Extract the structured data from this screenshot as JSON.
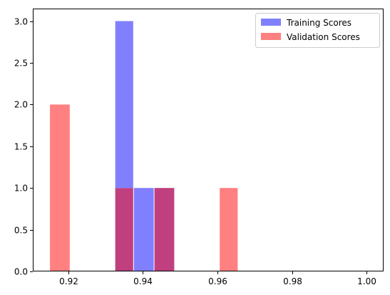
{
  "chart_data": {
    "type": "bar",
    "title": "",
    "xlabel": "",
    "ylabel": "",
    "xlim": [
      0.9105,
      1.0045
    ],
    "ylim": [
      0,
      3.15
    ],
    "x_ticks": [
      {
        "value": 0.92,
        "label": "0.92"
      },
      {
        "value": 0.94,
        "label": "0.94"
      },
      {
        "value": 0.96,
        "label": "0.96"
      },
      {
        "value": 0.98,
        "label": "0.98"
      },
      {
        "value": 1.0,
        "label": "1.00"
      }
    ],
    "y_ticks": [
      {
        "value": 0.0,
        "label": "0.0"
      },
      {
        "value": 0.5,
        "label": "0.5"
      },
      {
        "value": 1.0,
        "label": "1.0"
      },
      {
        "value": 1.5,
        "label": "1.5"
      },
      {
        "value": 2.0,
        "label": "2.0"
      },
      {
        "value": 2.5,
        "label": "2.5"
      },
      {
        "value": 3.0,
        "label": "3.0"
      }
    ],
    "series": [
      {
        "name": "Training Scores",
        "color": "#8080ff",
        "bins": [
          {
            "x0": 0.9325,
            "x1": 0.9375,
            "count": 3
          },
          {
            "x0": 0.9375,
            "x1": 0.943,
            "count": 1
          },
          {
            "x0": 0.943,
            "x1": 0.9485,
            "count": 1
          }
        ]
      },
      {
        "name": "Validation Scores",
        "color": "#ff8080",
        "bins": [
          {
            "x0": 0.915,
            "x1": 0.9205,
            "count": 2
          },
          {
            "x0": 0.9325,
            "x1": 0.9375,
            "count": 1
          },
          {
            "x0": 0.943,
            "x1": 0.9485,
            "count": 1
          },
          {
            "x0": 0.9605,
            "x1": 0.9655,
            "count": 1
          }
        ]
      }
    ],
    "overlap_color": "#c0407f",
    "legend_position": "top-right",
    "grid": false
  }
}
